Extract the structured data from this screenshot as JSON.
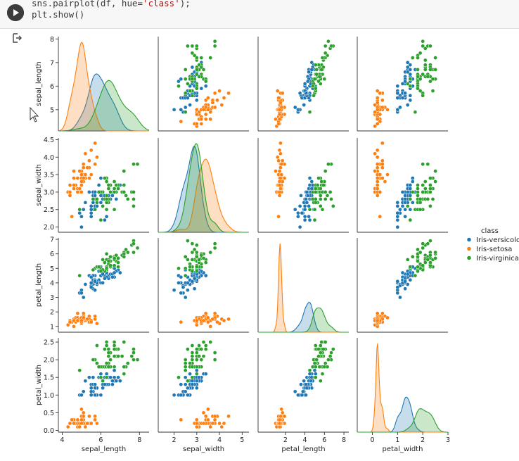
{
  "code": {
    "line1_pre": "sns.pairplot(df, hue=",
    "line1_str": "'class'",
    "line1_post": ");",
    "line2": "plt.show()"
  },
  "chart_data": {
    "type": "pairplot",
    "variables": [
      "sepal_length",
      "sepal_width",
      "petal_length",
      "petal_width"
    ],
    "ticks": {
      "sepal_length": [
        4,
        5,
        6,
        7,
        8
      ],
      "sepal_width": [
        2.0,
        2.5,
        3.0,
        3.5,
        4.0,
        4.5
      ],
      "petal_length": [
        1,
        2,
        3,
        4,
        5,
        6,
        7
      ],
      "petal_width": [
        0.0,
        0.5,
        1.0,
        1.5,
        2.0,
        2.5,
        3.0
      ]
    },
    "y_ticks": {
      "sepal_length": [
        5,
        6,
        7,
        8
      ],
      "sepal_width": [
        2.0,
        2.5,
        3.0,
        3.5,
        4.0,
        4.5
      ],
      "petal_length": [
        1,
        2,
        3,
        4,
        5,
        6,
        7
      ],
      "petal_width": [
        0.0,
        0.5,
        1.0,
        1.5,
        2.0,
        2.5
      ]
    },
    "x_ticks": {
      "sepal_length": [
        4,
        6,
        8
      ],
      "sepal_width": [
        2,
        3,
        4,
        5
      ],
      "petal_length": [
        2,
        4,
        6,
        8
      ],
      "petal_width": [
        0,
        1,
        2,
        3
      ]
    },
    "ranges": {
      "sepal_length": [
        3.8,
        8.5
      ],
      "sepal_width": [
        1.3,
        5.3
      ],
      "petal_length": [
        -0.8,
        8.5
      ],
      "petal_width": [
        -0.6,
        3.0
      ]
    },
    "y_ranges": {
      "sepal_length": [
        4.1,
        8.1
      ],
      "sepal_width": [
        1.85,
        4.55
      ],
      "petal_length": [
        0.6,
        7.1
      ],
      "petal_width": [
        -0.05,
        2.62
      ]
    },
    "legend": {
      "title": "class",
      "entries": [
        "Iris-versicolor",
        "Iris-setosa",
        "Iris-virginica"
      ],
      "placement": "right-center"
    },
    "colors": {
      "Iris-versicolor": "#1f77b4",
      "Iris-setosa": "#ff7f0e",
      "Iris-virginica": "#2ca02c"
    },
    "series": [
      {
        "name": "Iris-setosa",
        "sepal_length": [
          5.1,
          4.9,
          4.7,
          4.6,
          5.0,
          5.4,
          4.6,
          5.0,
          4.4,
          4.9,
          5.4,
          4.8,
          4.8,
          4.3,
          5.8,
          5.7,
          5.4,
          5.1,
          5.7,
          5.1,
          5.4,
          5.1,
          4.6,
          5.1,
          4.8,
          5.0,
          5.0,
          5.2,
          5.2,
          4.7,
          4.8,
          5.4,
          5.2,
          5.5,
          4.9,
          5.0,
          5.5,
          4.9,
          4.4,
          5.1,
          5.0,
          4.5,
          4.4,
          5.0,
          5.1,
          4.8,
          5.1,
          4.6,
          5.3,
          5.0
        ],
        "sepal_width": [
          3.5,
          3.0,
          3.2,
          3.1,
          3.6,
          3.9,
          3.4,
          3.4,
          2.9,
          3.1,
          3.7,
          3.4,
          3.0,
          3.0,
          4.0,
          4.4,
          3.9,
          3.5,
          3.8,
          3.8,
          3.4,
          3.7,
          3.6,
          3.3,
          3.4,
          3.0,
          3.4,
          3.5,
          3.4,
          3.2,
          3.1,
          3.4,
          4.1,
          4.2,
          3.1,
          3.2,
          3.5,
          3.6,
          3.0,
          3.4,
          3.5,
          2.3,
          3.2,
          3.5,
          3.8,
          3.0,
          3.8,
          3.2,
          3.7,
          3.3
        ],
        "petal_length": [
          1.4,
          1.4,
          1.3,
          1.5,
          1.4,
          1.7,
          1.4,
          1.5,
          1.4,
          1.5,
          1.5,
          1.6,
          1.4,
          1.1,
          1.2,
          1.5,
          1.3,
          1.4,
          1.7,
          1.5,
          1.7,
          1.5,
          1.0,
          1.7,
          1.9,
          1.6,
          1.6,
          1.5,
          1.4,
          1.6,
          1.6,
          1.5,
          1.5,
          1.4,
          1.5,
          1.2,
          1.3,
          1.4,
          1.3,
          1.5,
          1.3,
          1.3,
          1.3,
          1.6,
          1.9,
          1.4,
          1.6,
          1.4,
          1.5,
          1.4
        ],
        "petal_width": [
          0.2,
          0.2,
          0.2,
          0.2,
          0.2,
          0.4,
          0.3,
          0.2,
          0.2,
          0.1,
          0.2,
          0.2,
          0.1,
          0.1,
          0.2,
          0.4,
          0.4,
          0.3,
          0.3,
          0.3,
          0.2,
          0.4,
          0.2,
          0.5,
          0.2,
          0.2,
          0.4,
          0.2,
          0.2,
          0.2,
          0.2,
          0.4,
          0.1,
          0.2,
          0.2,
          0.2,
          0.2,
          0.1,
          0.2,
          0.2,
          0.3,
          0.3,
          0.2,
          0.6,
          0.4,
          0.3,
          0.2,
          0.2,
          0.2,
          0.2
        ]
      },
      {
        "name": "Iris-versicolor",
        "sepal_length": [
          7.0,
          6.4,
          6.9,
          5.5,
          6.5,
          5.7,
          6.3,
          4.9,
          6.6,
          5.2,
          5.0,
          5.9,
          6.0,
          6.1,
          5.6,
          6.7,
          5.6,
          5.8,
          6.2,
          5.6,
          5.9,
          6.1,
          6.3,
          6.1,
          6.4,
          6.6,
          6.8,
          6.7,
          6.0,
          5.7,
          5.5,
          5.5,
          5.8,
          6.0,
          5.4,
          6.0,
          6.7,
          6.3,
          5.6,
          5.5,
          5.5,
          6.1,
          5.8,
          5.0,
          5.6,
          5.7,
          5.7,
          6.2,
          5.1,
          5.7
        ],
        "sepal_width": [
          3.2,
          3.2,
          3.1,
          2.3,
          2.8,
          2.8,
          3.3,
          2.4,
          2.9,
          2.7,
          2.0,
          3.0,
          2.2,
          2.9,
          2.9,
          3.1,
          3.0,
          2.7,
          2.2,
          2.5,
          3.2,
          2.8,
          2.5,
          2.8,
          2.9,
          3.0,
          2.8,
          3.0,
          2.9,
          2.6,
          2.4,
          2.4,
          2.7,
          2.7,
          3.0,
          3.4,
          3.1,
          2.3,
          3.0,
          2.5,
          2.6,
          3.0,
          2.6,
          2.3,
          2.7,
          3.0,
          2.9,
          2.9,
          2.5,
          2.8
        ],
        "petal_length": [
          4.7,
          4.5,
          4.9,
          4.0,
          4.6,
          4.5,
          4.7,
          3.3,
          4.6,
          3.9,
          3.5,
          4.2,
          4.0,
          4.7,
          3.6,
          4.4,
          4.5,
          4.1,
          4.5,
          3.9,
          4.8,
          4.0,
          4.9,
          4.7,
          4.3,
          4.4,
          4.8,
          5.0,
          4.5,
          3.5,
          3.8,
          3.7,
          3.9,
          5.1,
          4.5,
          4.5,
          4.7,
          4.4,
          4.1,
          4.0,
          4.4,
          4.6,
          4.0,
          3.3,
          4.2,
          4.2,
          4.2,
          4.3,
          3.0,
          4.1
        ],
        "petal_width": [
          1.4,
          1.5,
          1.5,
          1.3,
          1.5,
          1.3,
          1.6,
          1.0,
          1.3,
          1.4,
          1.0,
          1.5,
          1.0,
          1.4,
          1.3,
          1.4,
          1.5,
          1.0,
          1.5,
          1.1,
          1.8,
          1.3,
          1.5,
          1.2,
          1.3,
          1.4,
          1.4,
          1.7,
          1.5,
          1.0,
          1.1,
          1.0,
          1.2,
          1.6,
          1.5,
          1.6,
          1.5,
          1.3,
          1.3,
          1.3,
          1.2,
          1.4,
          1.2,
          1.0,
          1.3,
          1.2,
          1.3,
          1.3,
          1.1,
          1.3
        ]
      },
      {
        "name": "Iris-virginica",
        "sepal_length": [
          6.3,
          5.8,
          7.1,
          6.3,
          6.5,
          7.6,
          4.9,
          7.3,
          6.7,
          7.2,
          6.5,
          6.4,
          6.8,
          5.7,
          5.8,
          6.4,
          6.5,
          7.7,
          7.7,
          6.0,
          6.9,
          5.6,
          7.7,
          6.3,
          6.7,
          7.2,
          6.2,
          6.1,
          6.4,
          7.2,
          7.4,
          7.9,
          6.4,
          6.3,
          6.1,
          7.7,
          6.3,
          6.4,
          6.0,
          6.9,
          6.7,
          6.9,
          5.8,
          6.8,
          6.7,
          6.7,
          6.3,
          6.5,
          6.2,
          5.9
        ],
        "sepal_width": [
          3.3,
          2.7,
          3.0,
          2.9,
          3.0,
          3.0,
          2.5,
          2.9,
          2.5,
          3.6,
          3.2,
          2.7,
          3.0,
          2.5,
          2.8,
          3.2,
          3.0,
          3.8,
          2.6,
          2.2,
          3.2,
          2.8,
          2.8,
          2.7,
          3.3,
          3.2,
          2.8,
          3.0,
          2.8,
          3.0,
          2.8,
          3.8,
          2.8,
          2.8,
          2.6,
          3.0,
          3.4,
          3.1,
          3.0,
          3.1,
          3.1,
          3.1,
          2.7,
          3.2,
          3.3,
          3.0,
          2.5,
          3.0,
          3.4,
          3.0
        ],
        "petal_length": [
          6.0,
          5.1,
          5.9,
          5.6,
          5.8,
          6.6,
          4.5,
          6.3,
          5.8,
          6.1,
          5.1,
          5.3,
          5.5,
          5.0,
          5.1,
          5.3,
          5.5,
          6.7,
          6.9,
          5.0,
          5.7,
          4.9,
          6.7,
          4.9,
          5.7,
          6.0,
          4.8,
          4.9,
          5.6,
          5.8,
          6.1,
          6.4,
          5.6,
          5.1,
          5.6,
          6.1,
          5.6,
          5.5,
          4.8,
          5.4,
          5.6,
          5.1,
          5.1,
          5.9,
          5.7,
          5.2,
          5.0,
          5.2,
          5.4,
          5.1
        ],
        "petal_width": [
          2.5,
          1.9,
          2.1,
          1.8,
          2.2,
          2.1,
          1.7,
          1.8,
          1.8,
          2.5,
          2.0,
          1.9,
          2.1,
          2.0,
          2.4,
          2.3,
          1.8,
          2.2,
          2.3,
          1.5,
          2.3,
          2.0,
          2.0,
          1.8,
          2.1,
          1.8,
          1.8,
          1.8,
          2.1,
          1.6,
          1.9,
          2.0,
          2.2,
          1.5,
          1.4,
          2.3,
          2.4,
          1.8,
          1.8,
          2.1,
          2.4,
          2.3,
          1.9,
          2.3,
          2.5,
          2.3,
          1.9,
          2.0,
          2.3,
          1.8
        ]
      }
    ]
  }
}
